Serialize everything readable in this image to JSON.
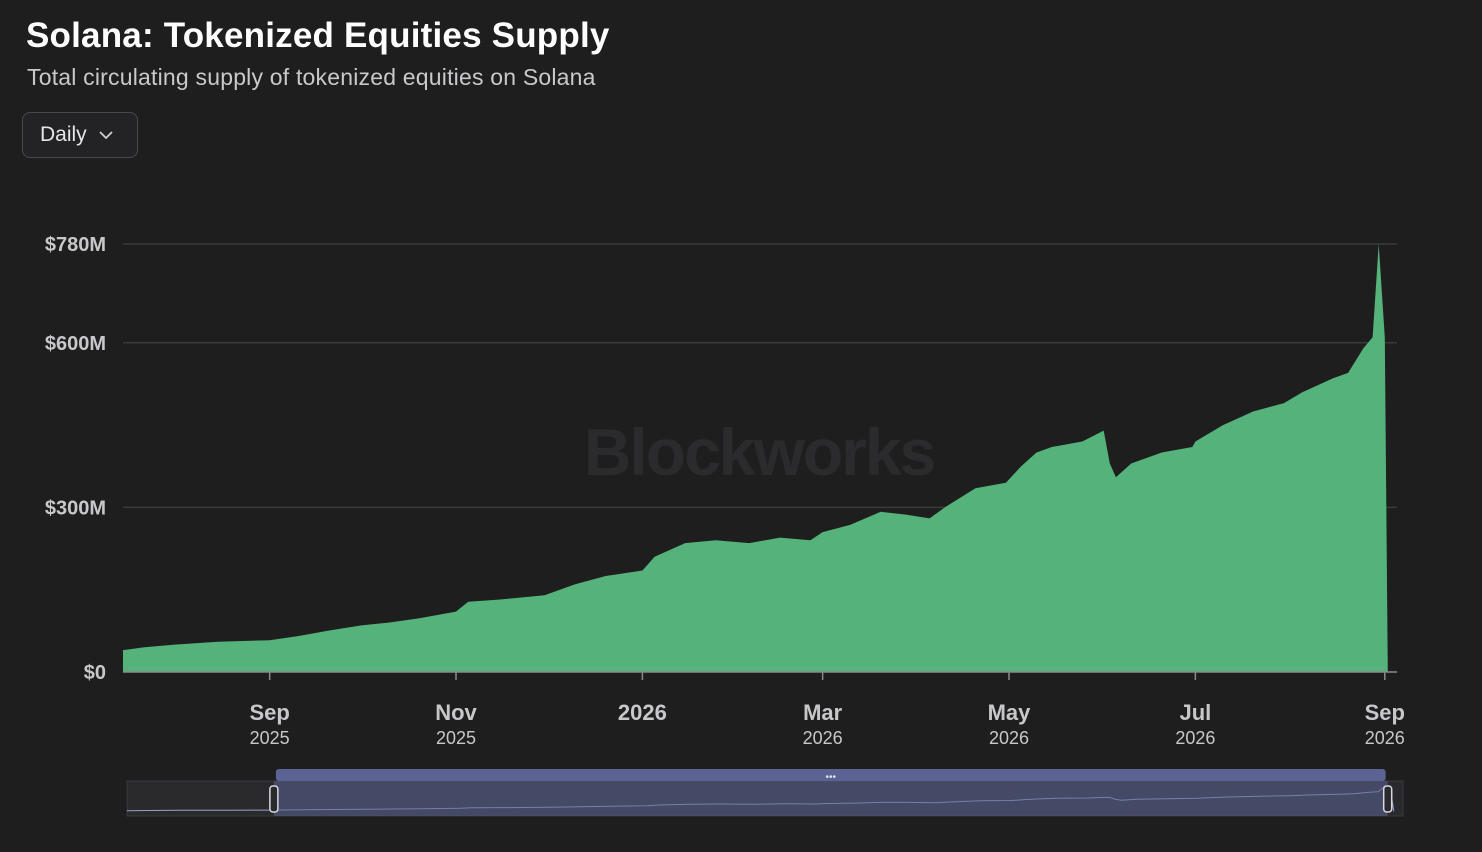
{
  "header": {
    "title": "Solana: Tokenized Equities Supply",
    "subtitle": "Total circulating supply of tokenized equities on Solana"
  },
  "controls": {
    "interval_label": "Daily",
    "interval_icon": "chevron-down-icon"
  },
  "watermark": "Blockworks",
  "colors": {
    "background": "#1e1e1f",
    "area_fill": "#55b27a",
    "gridline": "#3a3a3d",
    "navigator_handle": "#5a6394"
  },
  "chart_data": {
    "type": "area",
    "title": "Solana: Tokenized Equities Supply",
    "subtitle": "Total circulating supply of tokenized equities on Solana",
    "x_range": [
      "2025-07-15",
      "2026-09-05"
    ],
    "y_range": [
      0,
      780
    ],
    "y_unit": "$M",
    "y_ticks": [
      {
        "value": 0,
        "label": "$0"
      },
      {
        "value": 300,
        "label": "$300M"
      },
      {
        "value": 600,
        "label": "$600M"
      },
      {
        "value": 780,
        "label": "$780M"
      }
    ],
    "x_ticks": [
      {
        "date": "2025-09-01",
        "label": "Sep",
        "sublabel": "2025"
      },
      {
        "date": "2025-11-01",
        "label": "Nov",
        "sublabel": "2025"
      },
      {
        "date": "2026-01-01",
        "label": "2026",
        "sublabel": ""
      },
      {
        "date": "2026-03-01",
        "label": "Mar",
        "sublabel": "2026"
      },
      {
        "date": "2026-05-01",
        "label": "May",
        "sublabel": "2026"
      },
      {
        "date": "2026-07-01",
        "label": "Jul",
        "sublabel": "2026"
      },
      {
        "date": "2026-09-01",
        "label": "Sep",
        "sublabel": "2026"
      }
    ],
    "grid": true,
    "legend": "none",
    "series": [
      {
        "points": [
          [
            "2025-07-15",
            40
          ],
          [
            "2025-07-22",
            45
          ],
          [
            "2025-08-01",
            50
          ],
          [
            "2025-08-15",
            55
          ],
          [
            "2025-09-01",
            58
          ],
          [
            "2025-09-10",
            65
          ],
          [
            "2025-09-20",
            75
          ],
          [
            "2025-10-01",
            85
          ],
          [
            "2025-10-10",
            90
          ],
          [
            "2025-10-20",
            98
          ],
          [
            "2025-11-01",
            110
          ],
          [
            "2025-11-05",
            128
          ],
          [
            "2025-11-15",
            132
          ],
          [
            "2025-11-30",
            140
          ],
          [
            "2025-12-10",
            160
          ],
          [
            "2025-12-20",
            175
          ],
          [
            "2026-01-01",
            185
          ],
          [
            "2026-01-05",
            210
          ],
          [
            "2026-01-15",
            235
          ],
          [
            "2026-01-25",
            240
          ],
          [
            "2026-02-05",
            235
          ],
          [
            "2026-02-15",
            245
          ],
          [
            "2026-02-25",
            240
          ],
          [
            "2026-03-01",
            255
          ],
          [
            "2026-03-10",
            268
          ],
          [
            "2026-03-20",
            292
          ],
          [
            "2026-03-28",
            287
          ],
          [
            "2026-04-05",
            280
          ],
          [
            "2026-04-10",
            300
          ],
          [
            "2026-04-20",
            335
          ],
          [
            "2026-04-30",
            345
          ],
          [
            "2026-05-05",
            375
          ],
          [
            "2026-05-10",
            400
          ],
          [
            "2026-05-15",
            410
          ],
          [
            "2026-05-25",
            420
          ],
          [
            "2026-06-01",
            440
          ],
          [
            "2026-06-03",
            380
          ],
          [
            "2026-06-05",
            355
          ],
          [
            "2026-06-10",
            380
          ],
          [
            "2026-06-20",
            400
          ],
          [
            "2026-06-30",
            410
          ],
          [
            "2026-07-01",
            420
          ],
          [
            "2026-07-10",
            450
          ],
          [
            "2026-07-20",
            475
          ],
          [
            "2026-07-30",
            490
          ],
          [
            "2026-08-05",
            510
          ],
          [
            "2026-08-15",
            535
          ],
          [
            "2026-08-20",
            545
          ],
          [
            "2026-08-25",
            590
          ],
          [
            "2026-08-28",
            610
          ],
          [
            "2026-08-30",
            780
          ],
          [
            "2026-09-01",
            610
          ],
          [
            "2026-09-02",
            0
          ]
        ]
      }
    ]
  },
  "navigator": {
    "grip_label": "•••",
    "selected_start": "2025-09-01",
    "selected_end": "2026-08-31"
  }
}
